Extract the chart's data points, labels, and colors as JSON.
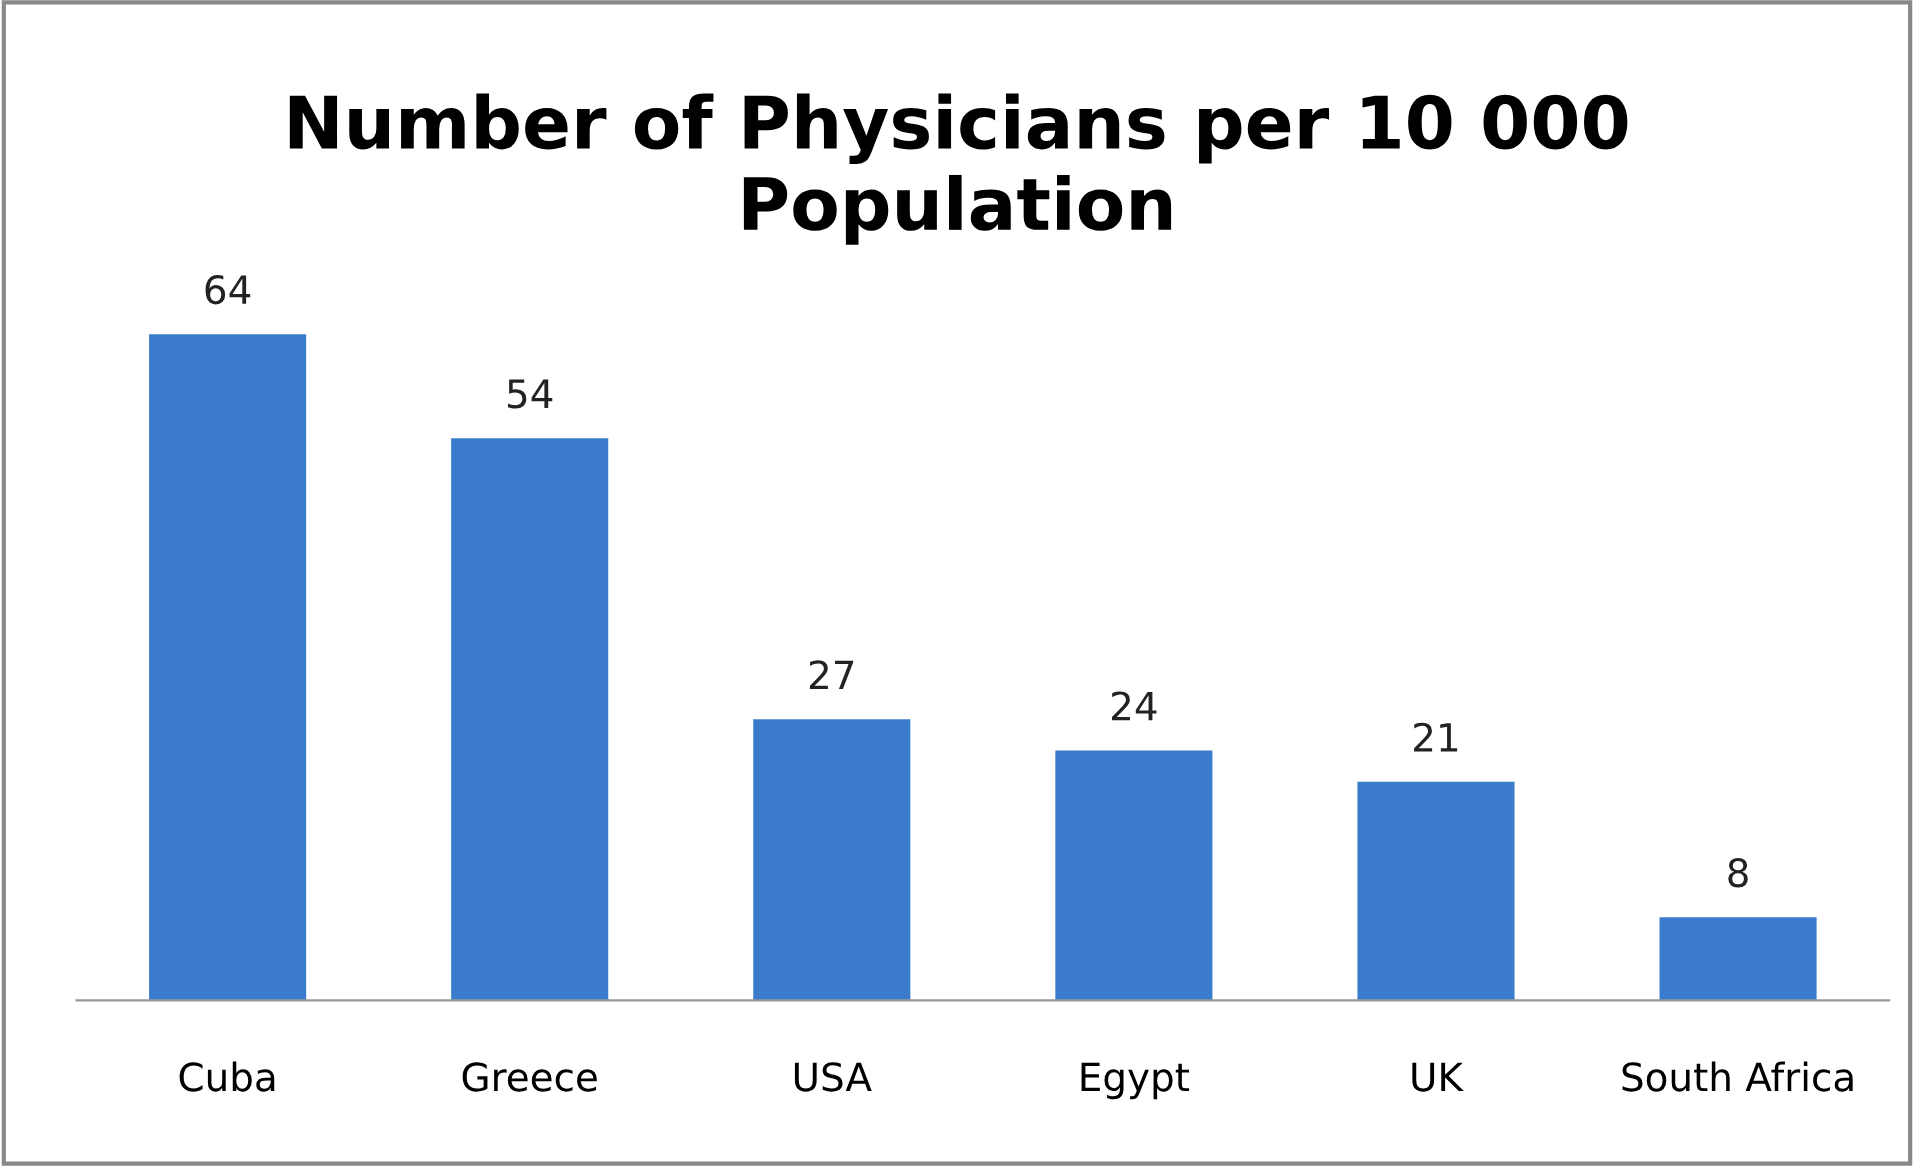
{
  "chart_data": {
    "type": "bar",
    "title": "Number of Physicians per 10 000\nPopulation",
    "categories": [
      "Cuba",
      "Greece",
      "USA",
      "Egypt",
      "UK",
      "South Africa"
    ],
    "values": [
      64,
      54,
      27,
      24,
      21,
      8
    ],
    "color": "#3b7bcc",
    "data_labels": true,
    "grid": false,
    "legend": false
  }
}
